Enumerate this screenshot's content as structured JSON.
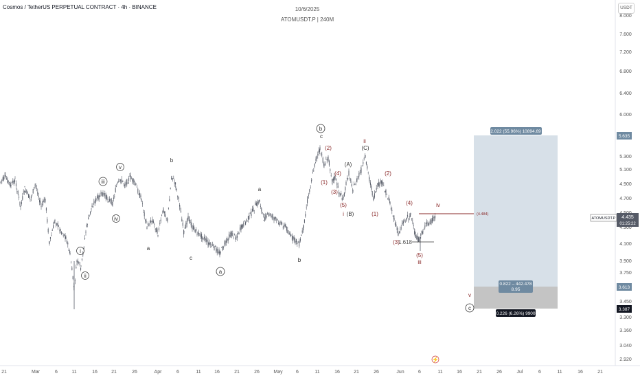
{
  "header": {
    "symbol_title": "Cosmos / TetherUS PERPETUAL CONTRACT · 4h · BINANCE",
    "date": "10/6/2025",
    "subtitle": "ATOMUSDT.P | 240M",
    "currency": "USDT"
  },
  "price_axis": {
    "ticks": [
      "8.000",
      "7.600",
      "7.200",
      "6.800",
      "6.400",
      "6.000",
      "5.635",
      "5.300",
      "5.100",
      "4.900",
      "4.700",
      "4.500",
      "4.300",
      "4.100",
      "3.900",
      "3.750",
      "3.613",
      "3.450",
      "3.387",
      "3.300",
      "3.160",
      "3.040",
      "2.920"
    ],
    "last_price_label": "ATOMUSDT.P",
    "last_price": "4.435",
    "countdown": "01:25:22",
    "target_label": "5.635",
    "entry_label": "3.613",
    "stop_label": "3.387"
  },
  "time_axis": {
    "ticks": [
      "21",
      "Mar",
      "6",
      "11",
      "16",
      "21",
      "26",
      "Apr",
      "6",
      "11",
      "16",
      "21",
      "26",
      "May",
      "6",
      "11",
      "16",
      "21",
      "26",
      "Jun",
      "6",
      "11",
      "16",
      "21",
      "26",
      "Jul",
      "6",
      "11",
      "16",
      "21"
    ]
  },
  "position_tool": {
    "target_text": "2.022 (55.96%) 10894.69",
    "ratio_text_1": "0.822 – 442.478",
    "ratio_text_2": "8.95",
    "stop_text": "0.226 (6.26%) 9900",
    "line_value": "(4.484)"
  },
  "annotations": {
    "i": "i",
    "ii": "ii",
    "iii": "iii",
    "iv": "iv",
    "v": "v",
    "a": "a",
    "b": "b",
    "c": "c",
    "A": "(A)",
    "B": "(B)",
    "C": "(C)",
    "w1": "(1)",
    "w2": "(2)",
    "w3": "(3)",
    "w4": "(4)",
    "w5": "(5)",
    "fib": "1.618",
    "lightning": "⚡"
  },
  "colors": {
    "candle": "#555a66",
    "wave_red": "#8a2a2a",
    "target_fill": "#d3dde6",
    "stop_fill": "#c4c4c4",
    "label_blue": "#6f8aa1",
    "hline": "#8a2a2a"
  }
}
